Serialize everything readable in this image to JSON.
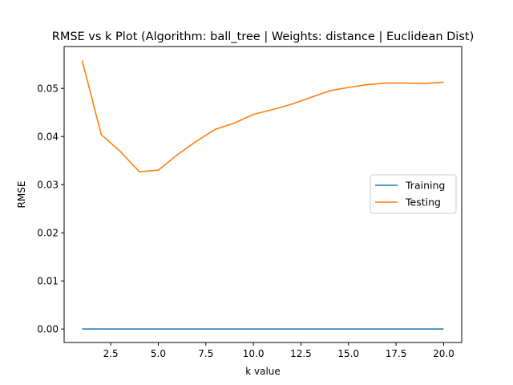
{
  "chart_data": {
    "type": "line",
    "title": "RMSE vs k Plot (Algorithm: ball_tree | Weights: distance | Euclidean Dist)",
    "xlabel": "k value",
    "ylabel": "RMSE",
    "xlim": [
      0.05,
      20.95
    ],
    "ylim": [
      -0.0028,
      0.0587
    ],
    "x_ticks": [
      "2.5",
      "5.0",
      "7.5",
      "10.0",
      "12.5",
      "15.0",
      "17.5",
      "20.0"
    ],
    "y_ticks": [
      "0.00",
      "0.01",
      "0.02",
      "0.03",
      "0.04",
      "0.05"
    ],
    "grid": false,
    "legend_position": "center-right",
    "x": [
      1,
      2,
      3,
      4,
      5,
      6,
      7,
      8,
      9,
      10,
      11,
      12,
      13,
      14,
      15,
      16,
      17,
      18,
      19,
      20
    ],
    "series": [
      {
        "name": "Training",
        "color": "#1f77b4",
        "values": [
          0,
          0,
          0,
          0,
          0,
          0,
          0,
          0,
          0,
          0,
          0,
          0,
          0,
          0,
          0,
          0,
          0,
          0,
          0,
          0
        ]
      },
      {
        "name": "Testing",
        "color": "#ff7f0e",
        "values": [
          0.0558,
          0.0404,
          0.0369,
          0.0327,
          0.033,
          0.0362,
          0.039,
          0.0415,
          0.0428,
          0.0446,
          0.0456,
          0.0467,
          0.0481,
          0.0495,
          0.0502,
          0.0508,
          0.0511,
          0.0511,
          0.051,
          0.0513
        ]
      }
    ]
  }
}
